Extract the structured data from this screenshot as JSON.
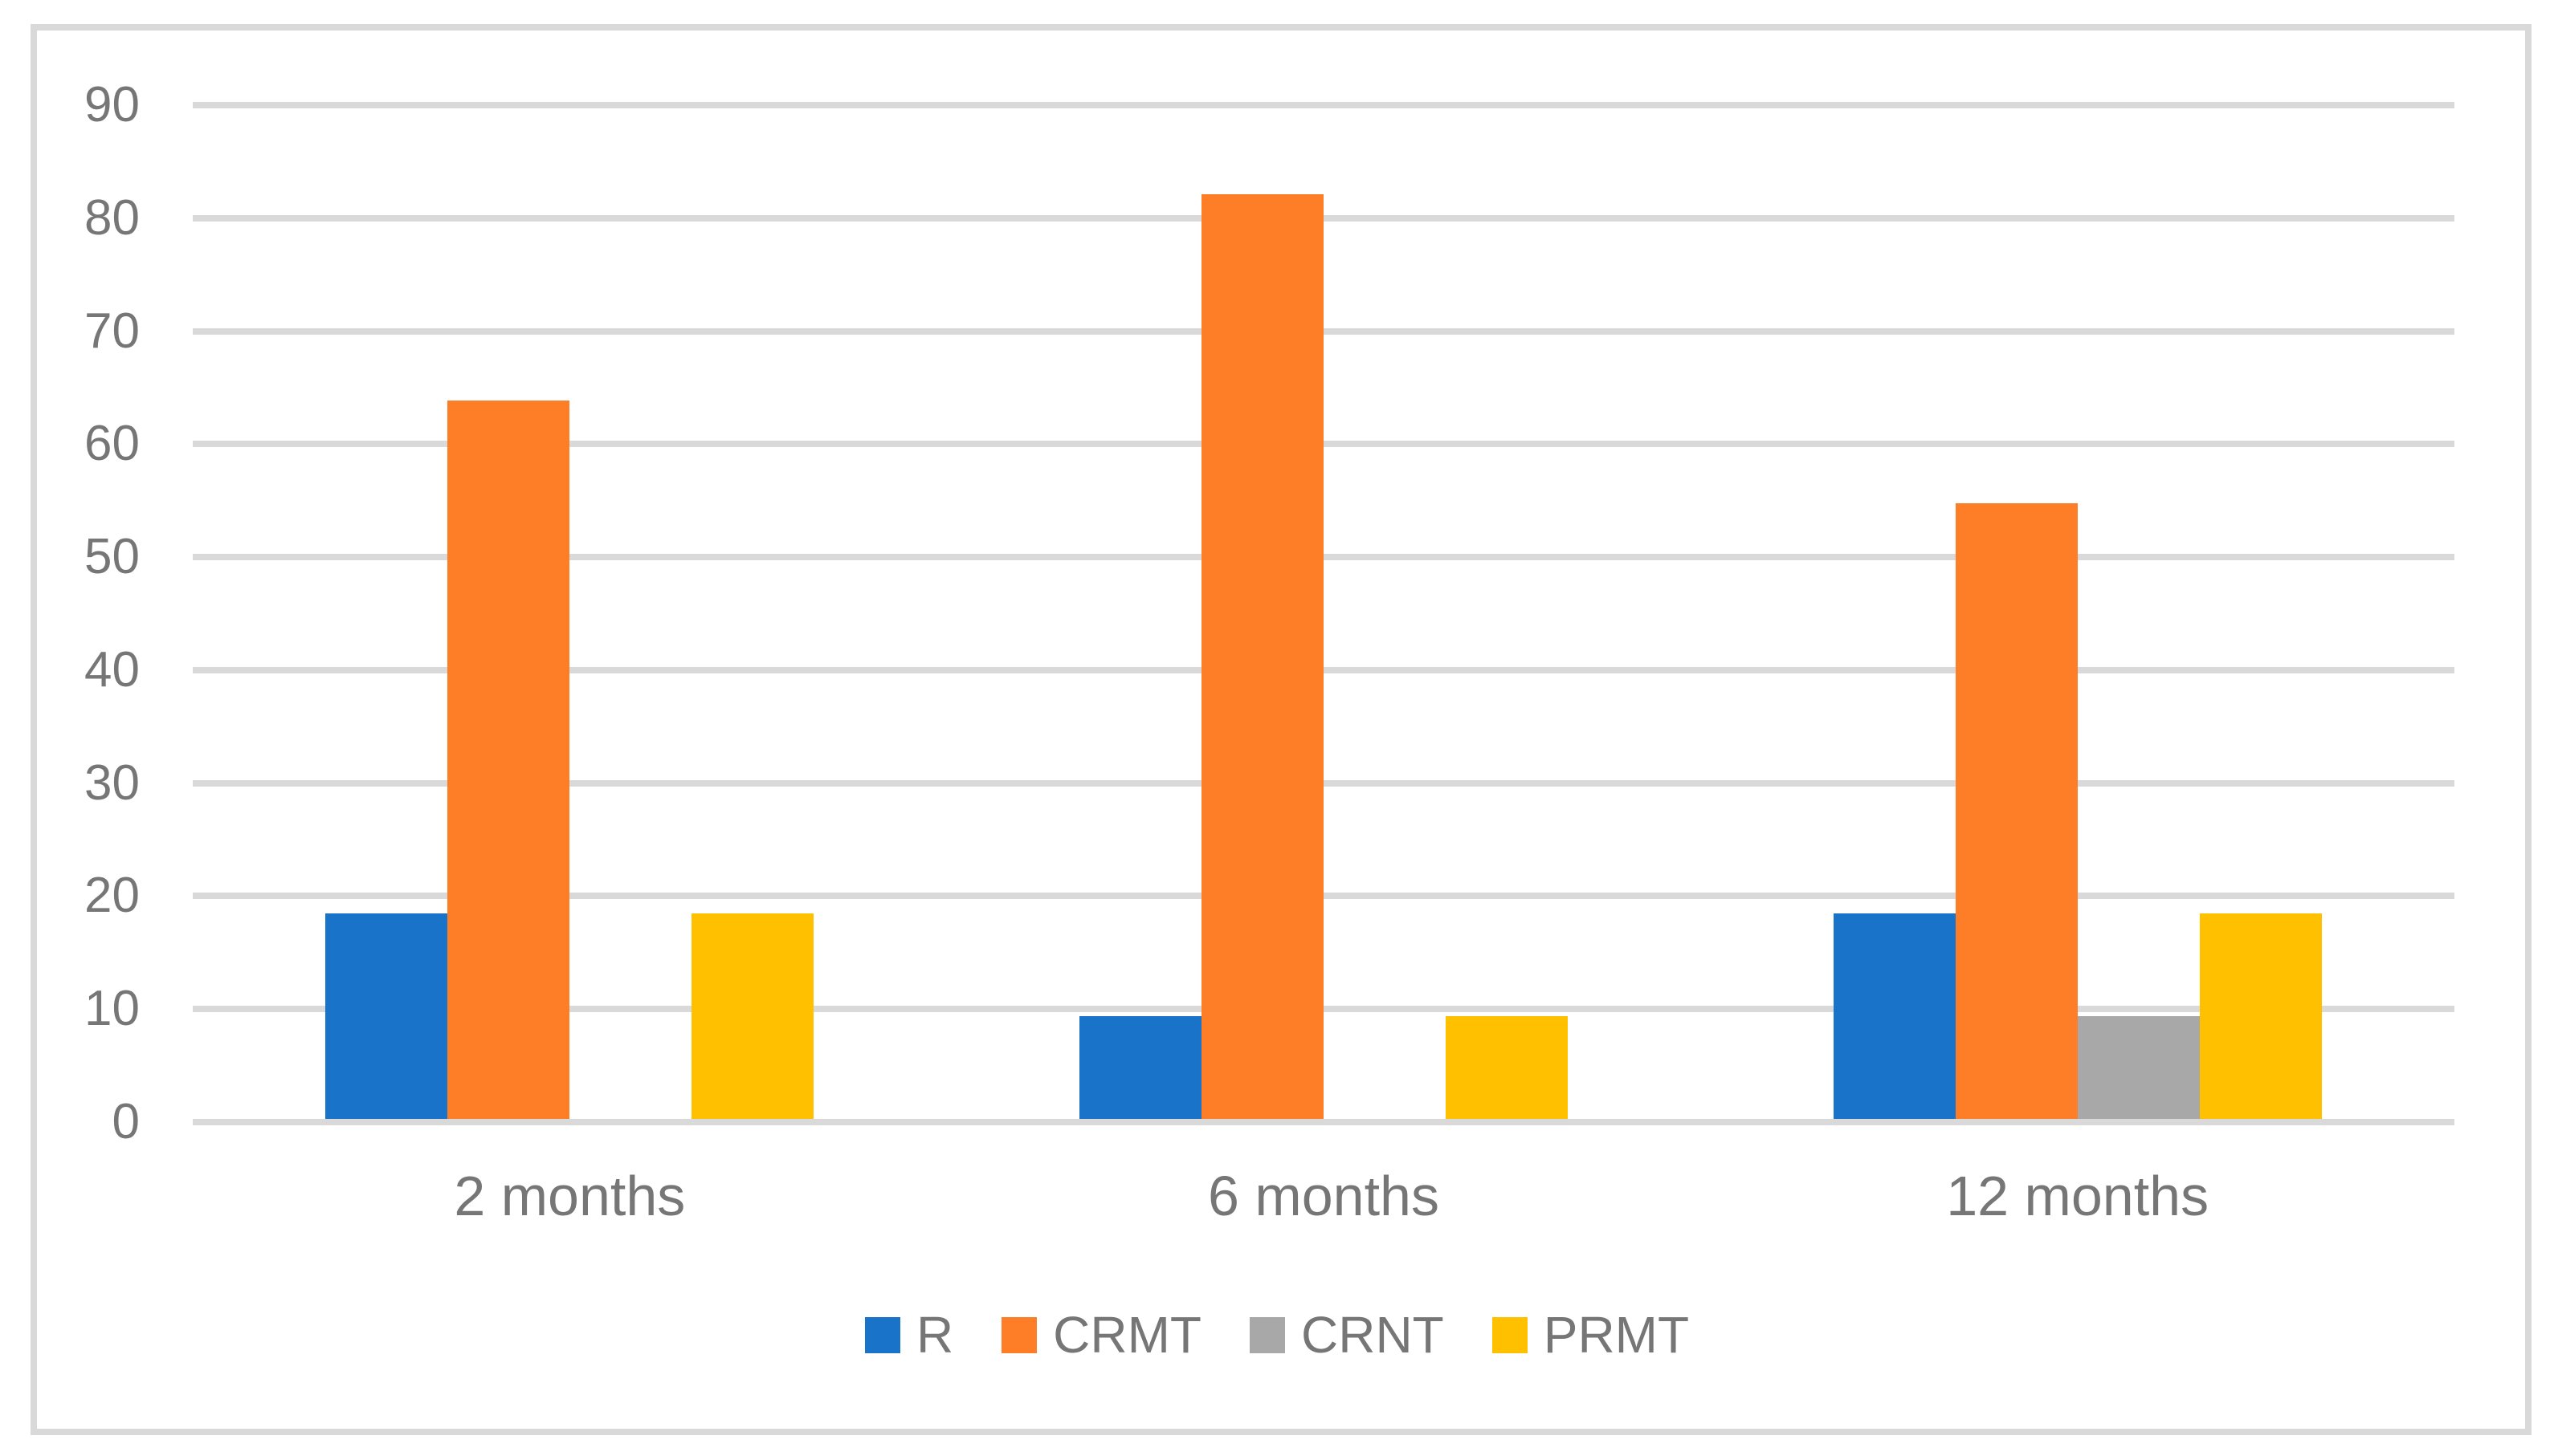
{
  "chart_data": {
    "type": "bar",
    "categories": [
      "2 months",
      "6 months",
      "12 months"
    ],
    "series": [
      {
        "name": "R",
        "color": "#1973C8",
        "values": [
          18.2,
          9.1,
          18.2
        ]
      },
      {
        "name": "CRMT",
        "color": "#FD7E27",
        "values": [
          63.6,
          81.8,
          54.5
        ]
      },
      {
        "name": "CRNT",
        "color": "#A8A8A8",
        "values": [
          0,
          0,
          9.1
        ]
      },
      {
        "name": "PRMT",
        "color": "#FFC000",
        "values": [
          18.2,
          9.1,
          18.2
        ]
      }
    ],
    "y_ticks": [
      0,
      10,
      20,
      30,
      40,
      50,
      60,
      70,
      80,
      90
    ],
    "ylim": [
      0,
      90
    ],
    "title": "",
    "xlabel": "",
    "ylabel": "",
    "grid": true,
    "legend_position": "bottom",
    "colors": {
      "gridline": "#D9D9D9",
      "chart_border": "#D9D9D9",
      "axis_text": "#767676",
      "background": "#FFFFFF"
    }
  }
}
